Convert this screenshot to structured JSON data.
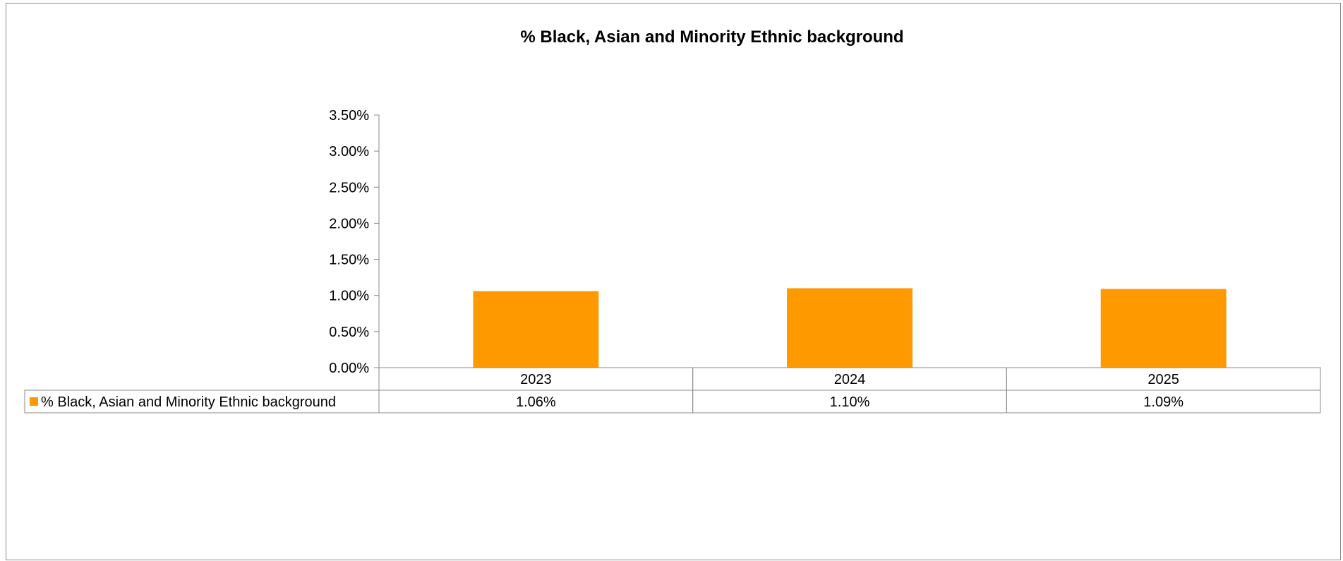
{
  "chart_data": {
    "type": "bar",
    "title": "% Black, Asian and Minority Ethnic background",
    "xlabel": "",
    "ylabel": "",
    "categories": [
      "2023",
      "2024",
      "2025"
    ],
    "series": [
      {
        "name": "% Black, Asian and Minority Ethnic background",
        "values": [
          1.06,
          1.1,
          1.09
        ],
        "value_labels": [
          "1.06%",
          "1.10%",
          "1.09%"
        ],
        "color": "#FF9900"
      }
    ],
    "ylim": [
      0,
      3.5
    ],
    "y_ticks": [
      0,
      0.5,
      1.0,
      1.5,
      2.0,
      2.5,
      3.0,
      3.5
    ],
    "y_tick_labels": [
      "0.00%",
      "0.50%",
      "1.00%",
      "1.50%",
      "2.00%",
      "2.50%",
      "3.00%",
      "3.50%"
    ],
    "grid": false,
    "legend": "data-table-bottom"
  }
}
